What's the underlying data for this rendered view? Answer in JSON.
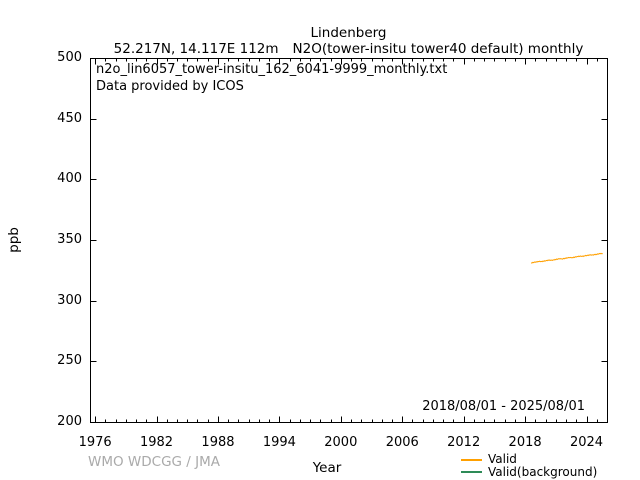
{
  "figure": {
    "title": "Lindenberg",
    "subtitle_left": "52.217N, 14.117E 112m",
    "subtitle_right": "N2O(tower-insitu tower40 default) monthly",
    "annotation_line1": "n2o_lin6057_tower-insitu_162_6041-9999_monthly.txt",
    "annotation_line2": "Data provided by ICOS",
    "date_range": "2018/08/01 - 2025/08/01",
    "watermark": "WMO WDCGG / JMA",
    "colors": {
      "axis": "#000000",
      "text": "#000000",
      "watermark": "#aaaaaa",
      "valid_line": "#ffa000",
      "valid_background_line": "#2e8b57"
    }
  },
  "chart_data": {
    "type": "line",
    "title": "Lindenberg",
    "xlabel": "Year",
    "ylabel": "ppb",
    "xlim": [
      1975.5,
      2026.0
    ],
    "ylim": [
      200,
      500
    ],
    "xticks_major": [
      1976,
      1982,
      1988,
      1994,
      2000,
      2006,
      2012,
      2018,
      2024
    ],
    "xtick_minor_step": 1,
    "yticks_major": [
      200,
      250,
      300,
      350,
      400,
      450,
      500
    ],
    "grid": false,
    "legend_position": "below-right",
    "legend": [
      {
        "label": "Valid",
        "color": "#ffa000"
      },
      {
        "label": "Valid(background)",
        "color": "#2e8b57"
      }
    ],
    "series": [
      {
        "name": "Valid",
        "color": "#ffa000",
        "start_year": 2018.583,
        "step_years": 0.083333,
        "values": [
          331.3,
          331.0,
          331.6,
          331.3,
          331.9,
          331.6,
          332.1,
          331.8,
          332.4,
          332.1,
          332.5,
          332.1,
          332.4,
          332.1,
          332.7,
          332.4,
          332.9,
          332.6,
          333.2,
          332.9,
          333.5,
          333.2,
          333.6,
          333.2,
          333.5,
          333.2,
          333.7,
          333.4,
          334.0,
          333.7,
          334.3,
          334.0,
          334.6,
          334.3,
          334.7,
          334.3,
          334.5,
          334.2,
          334.8,
          334.5,
          335.1,
          334.8,
          335.4,
          335.1,
          335.7,
          335.4,
          335.7,
          335.3,
          335.6,
          335.3,
          335.9,
          335.6,
          336.2,
          335.9,
          336.5,
          336.2,
          336.7,
          336.4,
          336.8,
          336.4,
          336.7,
          336.4,
          337.0,
          336.7,
          337.3,
          337.0,
          337.5,
          337.2,
          337.8,
          337.5,
          337.9,
          337.5,
          337.8,
          337.5,
          338.1,
          337.8,
          338.3,
          338.0,
          338.6,
          338.3,
          338.9,
          338.6,
          339.0,
          338.6,
          338.9
        ]
      },
      {
        "name": "Valid(background)",
        "color": "#2e8b57",
        "start_year": 2018.583,
        "step_years": 0.083333,
        "values": []
      }
    ]
  }
}
